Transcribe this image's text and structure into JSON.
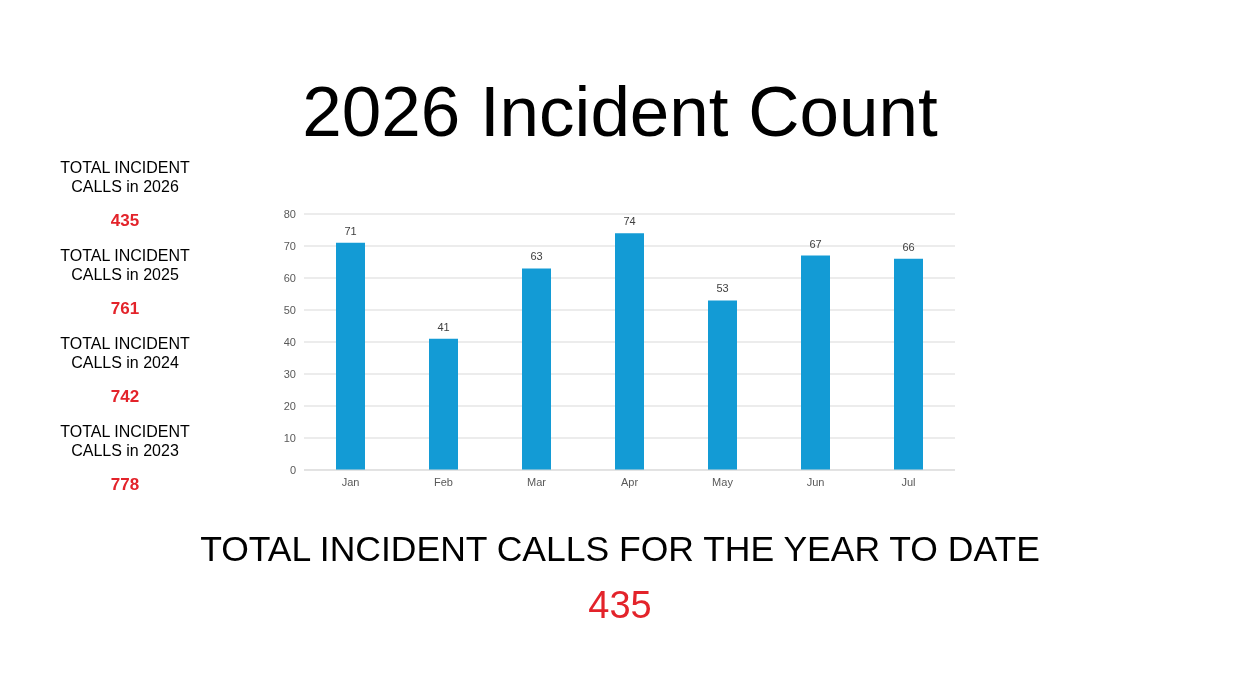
{
  "chart_data": [
    {
      "type": "bar",
      "title": "2026 Incident Count",
      "categories": [
        "Jan",
        "Feb",
        "Mar",
        "Apr",
        "May",
        "Jun",
        "Jul"
      ],
      "values": [
        71,
        41,
        63,
        74,
        53,
        67,
        66
      ],
      "color": "#139bd5",
      "ylim": [
        0,
        80
      ],
      "yticks": [
        0,
        10,
        20,
        30,
        40,
        50,
        60,
        70,
        80
      ],
      "grid": "y",
      "data_labels": true,
      "annotations": [
        "TOTAL INCIDENT CALLS FOR THE YEAR TO DATE",
        "435"
      ]
    },
    {
      "type": "other",
      "annotations": [
        "TOTAL INCIDENT CALLS in 2026",
        "435",
        "TOTAL INCIDENT CALLS in 2025",
        "761",
        "TOTAL INCIDENT CALLS in 2024",
        "742",
        "TOTAL INCIDENT CALLS in 2023",
        "778"
      ]
    }
  ]
}
